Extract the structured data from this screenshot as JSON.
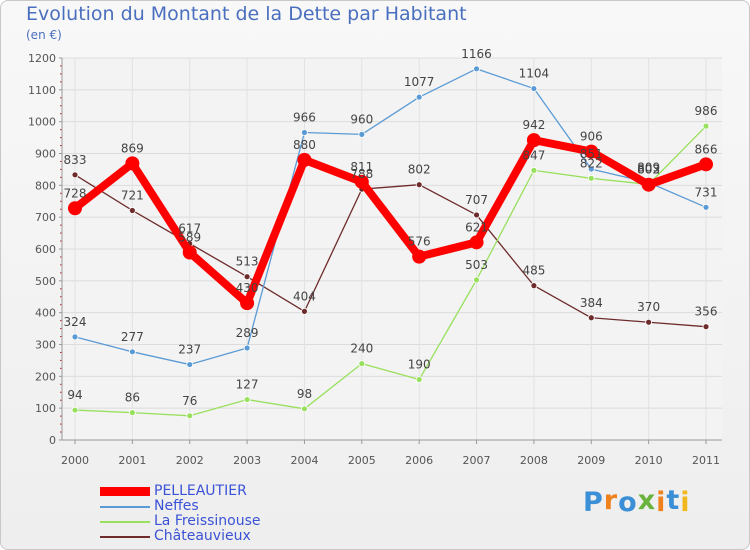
{
  "chart_data": {
    "type": "line",
    "title": "Evolution du Montant de la Dette par Habitant",
    "unit_label": "(en €)",
    "x": [
      "2000",
      "2001",
      "2002",
      "2003",
      "2004",
      "2005",
      "2006",
      "2007",
      "2008",
      "2009",
      "2010",
      "2011"
    ],
    "ylim": [
      0,
      1200
    ],
    "yticks": [
      "0",
      "100",
      "200",
      "300",
      "400",
      "500",
      "600",
      "700",
      "800",
      "900",
      "1000",
      "1100",
      "1200"
    ],
    "grid": true,
    "legend_position": "bottom-left",
    "series": [
      {
        "name": "PELLEAUTIER",
        "color": "#ff0000",
        "values": [
          728,
          869,
          589,
          430,
          880,
          811,
          576,
          621,
          942,
          906,
          802,
          866
        ],
        "labels": [
          "728",
          "869",
          "589",
          "430",
          "880",
          "811",
          "576",
          "621",
          "942",
          "906",
          "802",
          "866"
        ]
      },
      {
        "name": "Neffes",
        "color": "#5b9bd5",
        "values": [
          324,
          277,
          237,
          289,
          966,
          960,
          1077,
          1166,
          1104,
          851,
          809,
          731
        ],
        "labels": [
          "324",
          "277",
          "237",
          "289",
          "966",
          "960",
          "1077",
          "1166",
          "1104",
          "851",
          "809",
          "731"
        ]
      },
      {
        "name": "La Freissinouse",
        "color": "#99e05e",
        "values": [
          94,
          86,
          76,
          127,
          98,
          240,
          190,
          503,
          847,
          822,
          803,
          986
        ],
        "labels": [
          "94",
          "86",
          "76",
          "127",
          "98",
          "240",
          "190",
          "503",
          "847",
          "822",
          "803",
          "986"
        ]
      },
      {
        "name": "Châteauvieux",
        "color": "#6e2b2b",
        "values": [
          833,
          721,
          617,
          513,
          404,
          788,
          802,
          707,
          485,
          384,
          370,
          356
        ],
        "labels": [
          "833",
          "721",
          "617",
          "513",
          "404",
          "788",
          "802",
          "707",
          "485",
          "384",
          "370",
          "356"
        ]
      }
    ]
  },
  "logo": {
    "text": "Proxiti",
    "colors": [
      "#3a8fd6",
      "#f0821e",
      "#3a8fd6",
      "#6ab33c",
      "#f0821e",
      "#3a8fd6",
      "#f0b81e"
    ]
  }
}
